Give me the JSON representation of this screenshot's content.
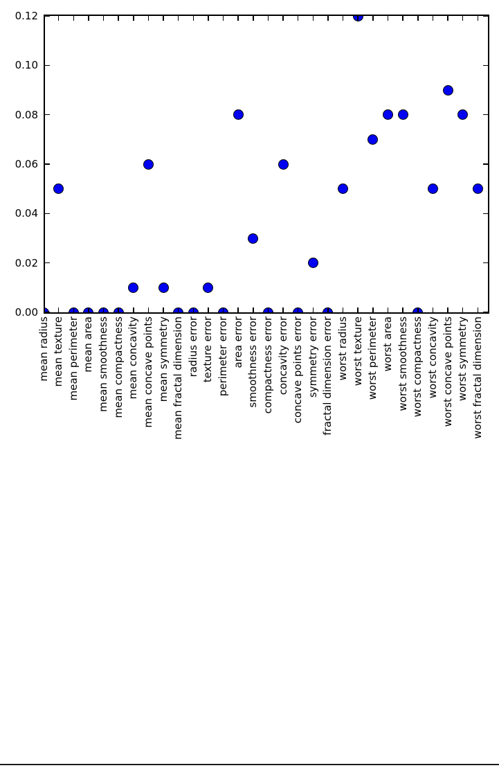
{
  "figure": {
    "background": "#ffffff",
    "bottom_rule_color": "#1c1c1c"
  },
  "chart_data": {
    "type": "scatter",
    "title": "",
    "xlabel": "",
    "ylabel": "",
    "grid": false,
    "legend": null,
    "x_tick_label_rotation": 90,
    "ylim": [
      0,
      0.12
    ],
    "yticks": [
      0,
      0.02,
      0.04,
      0.06,
      0.08,
      0.1,
      0.12
    ],
    "ytick_labels": [
      "0.00",
      "0.02",
      "0.04",
      "0.06",
      "0.08",
      "0.10",
      "0.12"
    ],
    "categories": [
      "mean radius",
      "mean texture",
      "mean perimeter",
      "mean area",
      "mean smoothness",
      "mean compactness",
      "mean concavity",
      "mean concave points",
      "mean symmetry",
      "mean fractal dimension",
      "radius error",
      "texture error",
      "perimeter error",
      "area error",
      "smoothness error",
      "compactness error",
      "concavity error",
      "concave points error",
      "symmetry error",
      "fractal dimension error",
      "worst radius",
      "worst texture",
      "worst perimeter",
      "worst area",
      "worst smoothness",
      "worst compactness",
      "worst concavity",
      "worst concave points",
      "worst symmetry",
      "worst fractal dimension"
    ],
    "values": [
      0.0,
      0.05,
      0.0,
      0.0,
      0.0,
      0.0,
      0.01,
      0.06,
      0.01,
      0.0,
      0.0,
      0.01,
      0.0,
      0.08,
      0.03,
      0.0,
      0.06,
      0.0,
      0.02,
      0.0,
      0.05,
      0.12,
      0.07,
      0.08,
      0.08,
      0.0,
      0.05,
      0.09,
      0.08,
      0.05
    ],
    "marker": {
      "shape": "circle",
      "color": "#0000f2",
      "edge_color": "#000000"
    },
    "axis_color": "#000000"
  }
}
